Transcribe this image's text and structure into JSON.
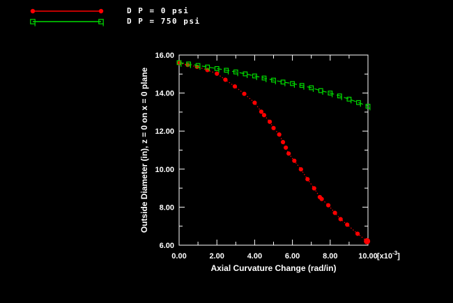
{
  "legend": {
    "items": [
      {
        "label": "D P = 0 psi",
        "color": "#ff0000",
        "marker": "filled-circle"
      },
      {
        "label": "D P = 750 psi",
        "color": "#00dd00",
        "marker": "open-flag-square"
      }
    ]
  },
  "chart_data": {
    "type": "line",
    "title": "",
    "xlabel": "Axial Curvature Change (rad/in)",
    "ylabel": "Outside Diameter (in), z = 0 on x = 0 plane",
    "x_unit": {
      "prefix": "[x10",
      "sup": "-3",
      "suffix": "]"
    },
    "xlim": [
      0,
      10
    ],
    "ylim": [
      6,
      16
    ],
    "x_major_ticks": [
      0,
      2,
      4,
      6,
      8,
      10
    ],
    "x_minor_ticks": [
      1,
      3,
      5,
      7,
      9
    ],
    "y_major_ticks": [
      16,
      14,
      12,
      10,
      8,
      6
    ],
    "y_minor_ticks": [
      15,
      13,
      11,
      9,
      7
    ],
    "x_tick_labels": [
      "0.00",
      "2.00",
      "4.00",
      "6.00",
      "8.00",
      "10.00"
    ],
    "y_tick_labels": [
      "16.00",
      "14.00",
      "12.00",
      "10.00",
      "8.00",
      "6.00"
    ],
    "grid": false,
    "legend_position": "top-left",
    "background": "#000000",
    "axis_color": "#ffffff",
    "series": [
      {
        "name": "D P = 0 psi",
        "color": "#ff0000",
        "line_style": "dotted",
        "marker": "filled-circle",
        "points": [
          [
            0.0,
            15.57
          ],
          [
            0.45,
            15.48
          ],
          [
            0.95,
            15.38
          ],
          [
            1.5,
            15.21
          ],
          [
            2.0,
            15.02
          ],
          [
            2.45,
            14.7
          ],
          [
            2.95,
            14.35
          ],
          [
            3.45,
            13.96
          ],
          [
            4.0,
            13.49
          ],
          [
            4.35,
            13.02
          ],
          [
            4.5,
            12.84
          ],
          [
            4.8,
            12.49
          ],
          [
            5.0,
            12.16
          ],
          [
            5.3,
            11.82
          ],
          [
            5.5,
            11.42
          ],
          [
            5.65,
            11.13
          ],
          [
            5.8,
            10.82
          ],
          [
            6.1,
            10.44
          ],
          [
            6.45,
            9.99
          ],
          [
            6.8,
            9.47
          ],
          [
            7.15,
            8.99
          ],
          [
            7.45,
            8.53
          ],
          [
            7.55,
            8.43
          ],
          [
            7.9,
            8.1
          ],
          [
            8.25,
            7.7
          ],
          [
            8.55,
            7.37
          ],
          [
            8.9,
            7.08
          ],
          [
            9.45,
            6.6
          ],
          [
            9.95,
            6.21
          ]
        ]
      },
      {
        "name": "D P = 750 psi",
        "color": "#00dd00",
        "line_style": "dashed",
        "marker": "open-flag-square",
        "points": [
          [
            0.0,
            15.6
          ],
          [
            0.5,
            15.53
          ],
          [
            1.0,
            15.45
          ],
          [
            1.5,
            15.37
          ],
          [
            2.0,
            15.29
          ],
          [
            2.5,
            15.2
          ],
          [
            3.0,
            15.11
          ],
          [
            3.5,
            15.01
          ],
          [
            4.0,
            14.9
          ],
          [
            4.5,
            14.79
          ],
          [
            5.0,
            14.68
          ],
          [
            5.5,
            14.58
          ],
          [
            6.0,
            14.5
          ],
          [
            6.5,
            14.4
          ],
          [
            7.0,
            14.28
          ],
          [
            7.5,
            14.13
          ],
          [
            8.0,
            14.0
          ],
          [
            8.5,
            13.85
          ],
          [
            9.0,
            13.68
          ],
          [
            9.5,
            13.5
          ],
          [
            10.0,
            13.31
          ]
        ]
      }
    ]
  }
}
